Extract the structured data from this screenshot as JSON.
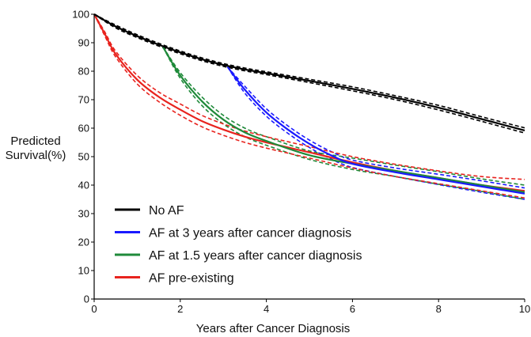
{
  "chart_data": {
    "type": "line",
    "title": "",
    "xlabel": "Years after Cancer Diagnosis",
    "ylabel_lines": [
      "Predicted",
      "Survival(%)"
    ],
    "xlim": [
      0,
      10
    ],
    "ylim": [
      0,
      100
    ],
    "xticks": [
      0,
      2,
      4,
      6,
      8,
      10
    ],
    "yticks": [
      0,
      10,
      20,
      30,
      40,
      50,
      60,
      70,
      80,
      90,
      100
    ],
    "grid": false,
    "legend_position": "bottom-left",
    "series": [
      {
        "name": "No AF",
        "color": "#000000",
        "x": [
          0,
          0.5,
          1,
          1.5,
          2,
          2.5,
          3,
          3.5,
          4,
          5,
          6,
          7,
          8,
          9,
          10
        ],
        "y": [
          100,
          95.7,
          92.3,
          89.3,
          86.6,
          84.2,
          82.2,
          80.6,
          79.3,
          76.6,
          73.8,
          70.7,
          67.2,
          63.2,
          59.2
        ],
        "ci_lower": [
          100,
          95.2,
          91.8,
          88.8,
          86.1,
          83.7,
          81.7,
          80.1,
          78.8,
          76.0,
          73.1,
          70.0,
          66.4,
          62.4,
          58.3
        ],
        "ci_upper": [
          100,
          96.2,
          92.8,
          89.8,
          87.1,
          84.7,
          82.7,
          81.1,
          79.8,
          77.2,
          74.5,
          71.4,
          68.0,
          64.0,
          60.1
        ]
      },
      {
        "name": "AF at 3 years after cancer diagnosis",
        "color": "#1a1aff",
        "x": [
          3.1,
          3.5,
          4,
          4.5,
          5,
          5.5,
          6,
          7,
          8,
          9,
          10
        ],
        "y": [
          81.5,
          73.5,
          65.5,
          59.5,
          54.5,
          50.5,
          47.5,
          44.5,
          42,
          39.5,
          37
        ],
        "ci_lower": [
          81.5,
          72.3,
          64.2,
          58.2,
          53.2,
          49.2,
          46.2,
          43.0,
          40.2,
          37.5,
          35.0
        ],
        "ci_upper": [
          81.5,
          74.7,
          66.8,
          60.8,
          55.8,
          51.8,
          48.8,
          46.0,
          43.8,
          41.5,
          39.0
        ]
      },
      {
        "name": "AF at 1.5 years after cancer diagnosis",
        "color": "#1f8a3a",
        "x": [
          1.6,
          2,
          2.5,
          3,
          3.5,
          4,
          5,
          6,
          7,
          8,
          9,
          10
        ],
        "y": [
          88.5,
          78.5,
          69.5,
          63,
          58.5,
          55.5,
          50.5,
          47.5,
          45,
          42.5,
          40,
          37.5
        ],
        "ci_lower": [
          88.5,
          77.5,
          68.0,
          61.5,
          57.0,
          54.0,
          49.0,
          45.5,
          43.0,
          40.3,
          37.8,
          35.0
        ],
        "ci_upper": [
          88.5,
          79.5,
          71.0,
          64.5,
          60.0,
          57.0,
          52.0,
          49.5,
          47.0,
          44.7,
          42.2,
          40.0
        ]
      },
      {
        "name": "AF pre-existing",
        "color": "#e8231e",
        "x": [
          0,
          0.25,
          0.5,
          1,
          1.5,
          2,
          2.5,
          3,
          3.5,
          4,
          5,
          6,
          7,
          8,
          9,
          10
        ],
        "y": [
          100,
          93,
          86,
          77,
          71,
          66.5,
          62.5,
          59.5,
          57,
          55,
          51.5,
          48,
          45,
          42.5,
          40,
          38
        ],
        "ci_lower": [
          100,
          92.3,
          85,
          75.5,
          69.3,
          64.5,
          60.5,
          57.5,
          55,
          53,
          49.5,
          46,
          43,
          40.5,
          38,
          35.5
        ],
        "ci_upper": [
          100,
          93.7,
          87,
          78.5,
          72.7,
          68.5,
          64.5,
          61.5,
          59,
          57,
          53.5,
          50,
          47.3,
          45,
          43,
          42
        ]
      }
    ]
  }
}
